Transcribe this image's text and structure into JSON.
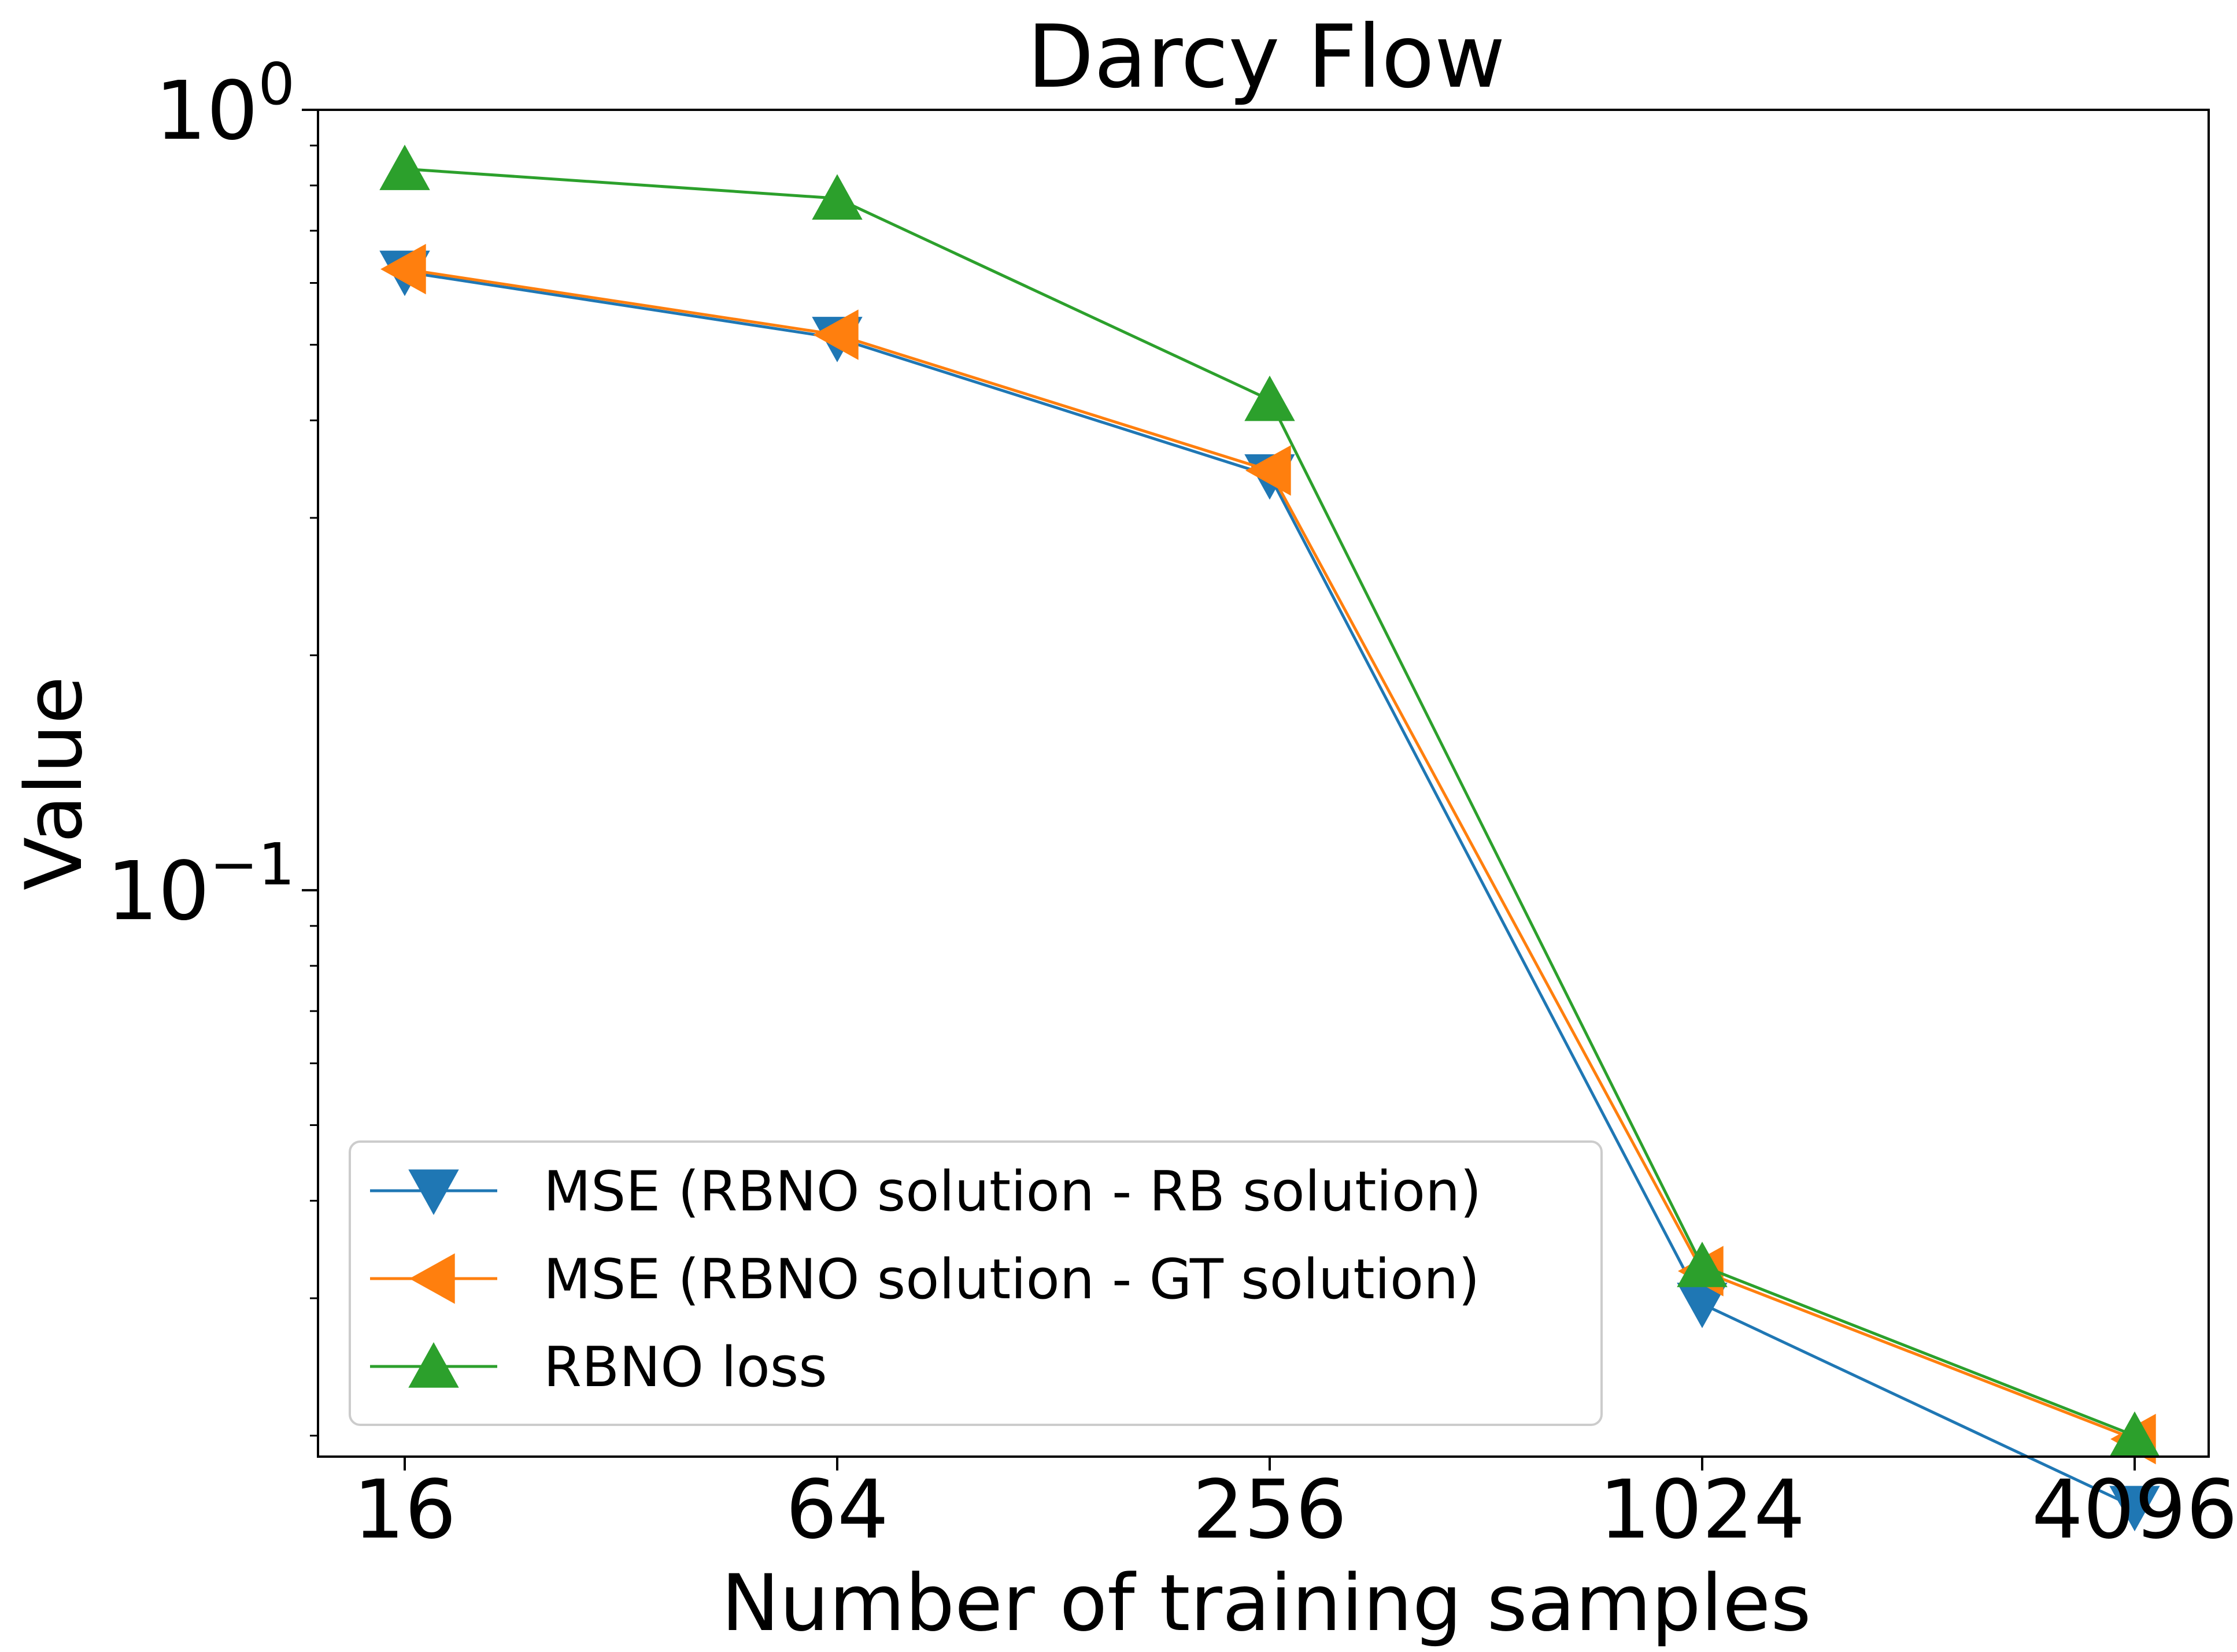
{
  "chart_data": {
    "type": "line",
    "title": "Darcy Flow",
    "xlabel": "Number of training samples",
    "ylabel": "Value",
    "x_scale": "log2",
    "y_scale": "log",
    "categories": [
      "16",
      "64",
      "256",
      "1024",
      "4096"
    ],
    "x": [
      16,
      64,
      256,
      1024,
      4096
    ],
    "y_ticks": [
      {
        "value": 1,
        "base": "10",
        "exp": "0"
      },
      {
        "value": 0.1,
        "base": "10",
        "exp": "−1"
      }
    ],
    "ylim": [
      0.0188,
      1.0
    ],
    "grid": false,
    "legend_position": "lower-left",
    "series": [
      {
        "name": "MSE (RBNO solution - RB solution)",
        "color": "#1f77b4",
        "marker": "triangle-down",
        "values": [
          0.62,
          0.51,
          0.34,
          0.0295,
          0.0162
        ]
      },
      {
        "name": "MSE (RBNO solution - GT solution)",
        "color": "#ff7f0e",
        "marker": "triangle-left",
        "values": [
          0.625,
          0.515,
          0.345,
          0.0325,
          0.0198
        ]
      },
      {
        "name": "RBNO loss",
        "color": "#2ca02c",
        "marker": "triangle-up",
        "values": [
          0.84,
          0.77,
          0.425,
          0.033,
          0.02
        ]
      }
    ]
  }
}
